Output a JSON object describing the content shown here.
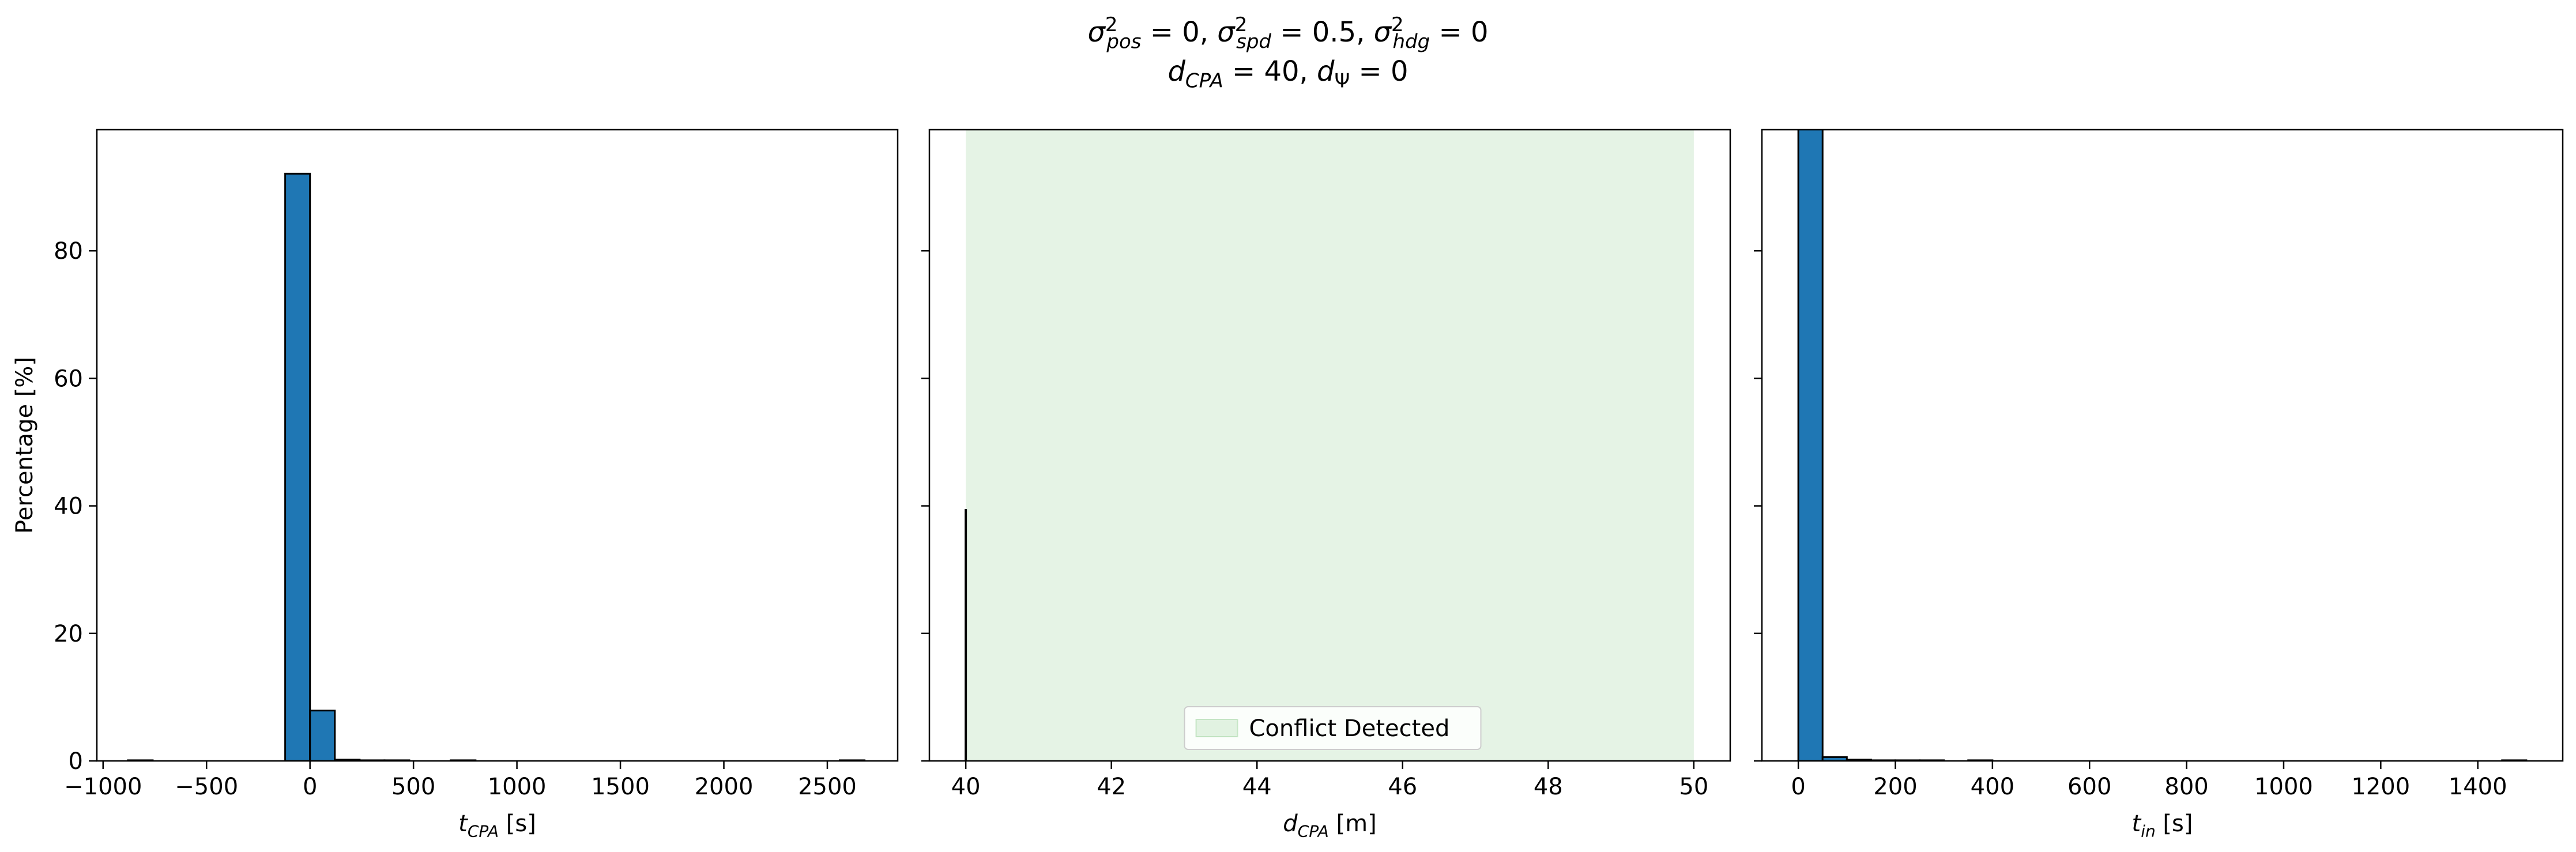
{
  "title": {
    "line1": [
      {
        "t": "σ",
        "s": "it"
      },
      {
        "t": "2",
        "s": "sup"
      },
      {
        "t": "pos",
        "s": "subit"
      },
      {
        "t": " = 0, ",
        "s": "n"
      },
      {
        "t": "σ",
        "s": "it"
      },
      {
        "t": "2",
        "s": "sup"
      },
      {
        "t": "spd",
        "s": "subit"
      },
      {
        "t": " = 0.5, ",
        "s": "n"
      },
      {
        "t": "σ",
        "s": "it"
      },
      {
        "t": "2",
        "s": "sup"
      },
      {
        "t": "hdg",
        "s": "subit"
      },
      {
        "t": " = 0",
        "s": "n"
      }
    ],
    "line2": [
      {
        "t": "d",
        "s": "it"
      },
      {
        "t": "CPA",
        "s": "subit"
      },
      {
        "t": " = 40, ",
        "s": "n"
      },
      {
        "t": "d",
        "s": "it"
      },
      {
        "t": "Ψ",
        "s": "sub"
      },
      {
        "t": " = 0",
        "s": "n"
      }
    ]
  },
  "colors": {
    "bar": "#1f77b4",
    "edge": "#000000",
    "conflict": "#2ca02c"
  },
  "chart_data": [
    {
      "type": "bar",
      "xlabel": [
        {
          "t": "t",
          "s": "it"
        },
        {
          "t": "CPA",
          "s": "subit"
        },
        {
          "t": " [s]",
          "s": "n"
        }
      ],
      "ylabel": "Percentage [%]",
      "xlim": [
        -1030,
        2840
      ],
      "ylim": [
        0,
        99
      ],
      "xticks": [
        -1000,
        -500,
        0,
        500,
        1000,
        1500,
        2000,
        2500
      ],
      "xtick_labels": [
        "−1000",
        "−500",
        "0",
        "500",
        "1000",
        "1500",
        "2000",
        "2500"
      ],
      "yticks": [
        0,
        20,
        40,
        60,
        80
      ],
      "ytick_labels": [
        "0",
        "20",
        "40",
        "60",
        "80"
      ],
      "bin_width": 120,
      "bars": [
        {
          "x0": -120,
          "value": 92.1
        },
        {
          "x0": 0,
          "value": 7.9
        },
        {
          "x0": 120,
          "value": 0.2
        },
        {
          "x0": 240,
          "value": 0.1
        },
        {
          "x0": 360,
          "value": 0.1
        },
        {
          "x0": 680,
          "value": 0.1
        },
        {
          "x0": -880,
          "value": 0.1
        },
        {
          "x0": 2560,
          "value": 0.1
        }
      ]
    },
    {
      "type": "bar",
      "xlabel": [
        {
          "t": "d",
          "s": "it"
        },
        {
          "t": "CPA",
          "s": "subit"
        },
        {
          "t": " [m]",
          "s": "n"
        }
      ],
      "ylabel": "",
      "xlim": [
        39.5,
        50.5
      ],
      "ylim": [
        0,
        99
      ],
      "xticks": [
        40,
        42,
        44,
        46,
        48,
        50
      ],
      "xtick_labels": [
        "40",
        "42",
        "44",
        "46",
        "48",
        "50"
      ],
      "yticks": [
        0,
        20,
        40,
        60,
        80
      ],
      "ytick_labels": [],
      "bin_width": 0,
      "bars": [
        {
          "x0": 40.0,
          "value": 39.5
        }
      ],
      "shaded_region": {
        "x0": 40,
        "x1": 50
      },
      "legend": {
        "label": "Conflict Detected",
        "placement": "lower center"
      }
    },
    {
      "type": "bar",
      "xlabel": [
        {
          "t": "t",
          "s": "it"
        },
        {
          "t": "in",
          "s": "subit"
        },
        {
          "t": " [s]",
          "s": "n"
        }
      ],
      "ylabel": "",
      "xlim": [
        -75,
        1575
      ],
      "ylim": [
        0,
        99
      ],
      "xticks": [
        0,
        200,
        400,
        600,
        800,
        1000,
        1200,
        1400
      ],
      "xtick_labels": [
        "0",
        "200",
        "400",
        "600",
        "800",
        "1000",
        "1200",
        "1400"
      ],
      "yticks": [
        0,
        20,
        40,
        60,
        80
      ],
      "ytick_labels": [],
      "bin_width": 50,
      "bars": [
        {
          "x0": 0,
          "value": 99.2
        },
        {
          "x0": 50,
          "value": 0.6
        },
        {
          "x0": 100,
          "value": 0.2
        },
        {
          "x0": 150,
          "value": 0.1
        },
        {
          "x0": 200,
          "value": 0.1
        },
        {
          "x0": 250,
          "value": 0.1
        },
        {
          "x0": 350,
          "value": 0.1
        },
        {
          "x0": 1450,
          "value": 0.1
        }
      ]
    }
  ]
}
